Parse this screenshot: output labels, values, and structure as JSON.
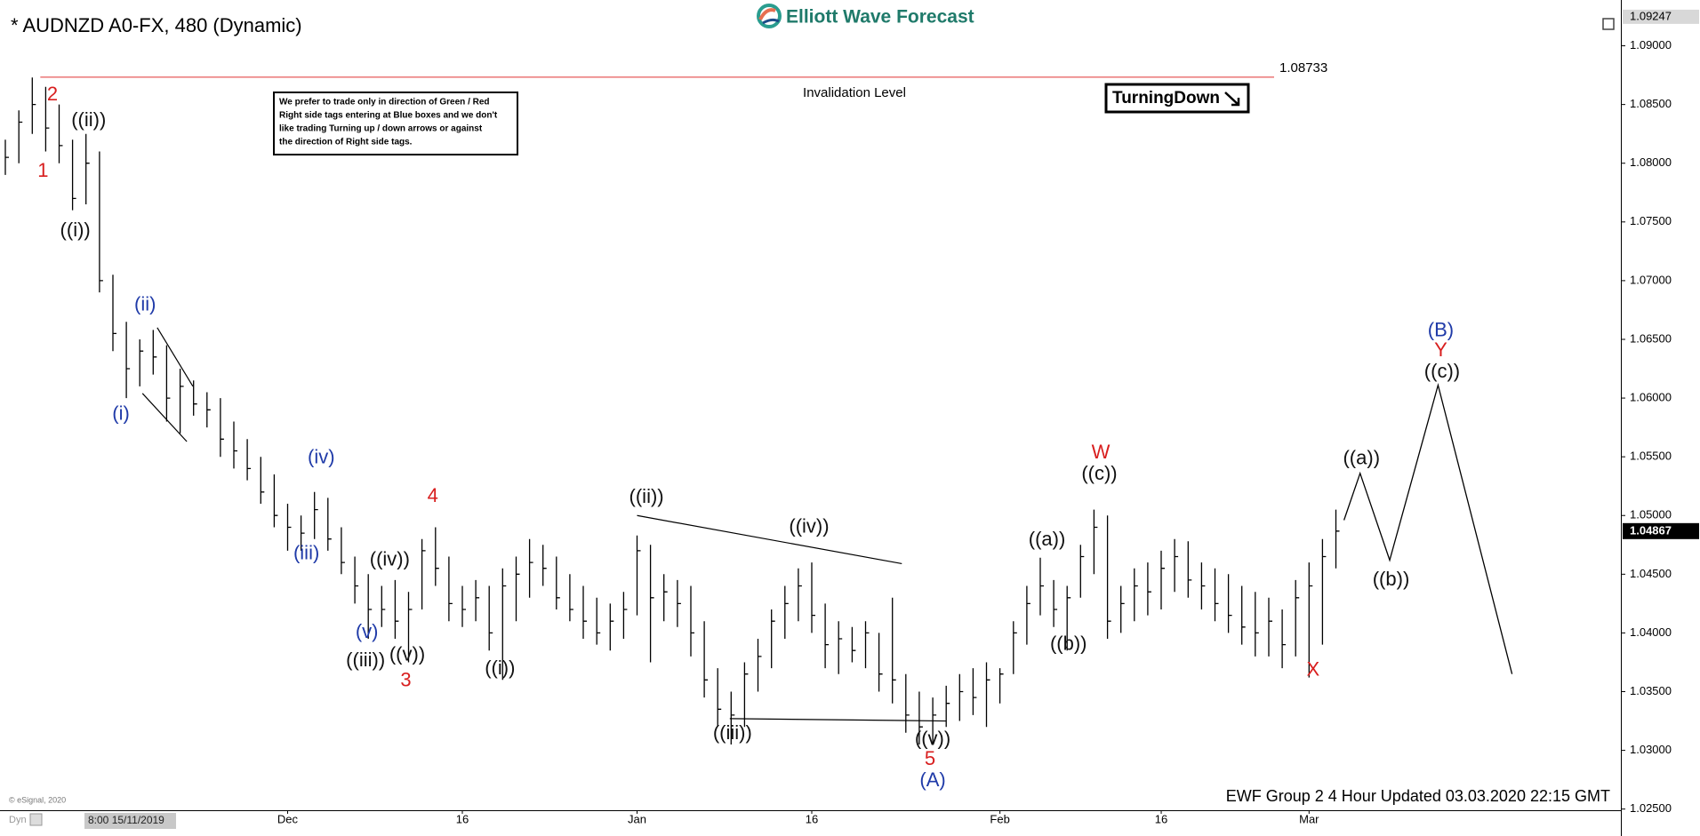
{
  "title": "* AUDNZD A0-FX, 480 (Dynamic)",
  "logo": "Elliott Wave Forecast",
  "note": [
    "We prefer to trade only in direction of Green / Red",
    "Right side tags entering at Blue boxes and we don't",
    "like trading Turning up / down arrows or against",
    "the direction of Right side tags."
  ],
  "badge": "TurningDown",
  "footer": "EWF Group 2 4 Hour Updated 03.03.2020 22:15 GMT",
  "copyright": "© eSignal, 2020",
  "dyn": "Dyn",
  "cursor_time": "8:00 15/11/2019",
  "chart_data": {
    "type": "ohlc",
    "color": "#000000",
    "categories": [
      null,
      null,
      null,
      null,
      null,
      null,
      null,
      null,
      null,
      null,
      null,
      null,
      null,
      null,
      null,
      null,
      null,
      null,
      null,
      null,
      null,
      "Dec",
      null,
      null,
      null,
      null,
      null,
      null,
      null,
      null,
      null,
      null,
      null,
      null,
      "16",
      null,
      null,
      null,
      null,
      null,
      null,
      null,
      null,
      null,
      null,
      null,
      null,
      "Jan",
      null,
      null,
      null,
      null,
      null,
      null,
      null,
      null,
      null,
      null,
      null,
      null,
      "16",
      null,
      null,
      null,
      null,
      null,
      null,
      null,
      null,
      null,
      null,
      null,
      null,
      null,
      "Feb",
      null,
      null,
      null,
      null,
      null,
      null,
      null,
      null,
      null,
      null,
      null,
      "16",
      null,
      null,
      null,
      null,
      null,
      null,
      null,
      null,
      null,
      null,
      "Mar",
      null,
      null
    ],
    "high": [
      1.082,
      1.0845,
      1.0873,
      1.0865,
      1.085,
      1.082,
      1.0825,
      1.081,
      1.0705,
      1.0665,
      1.065,
      1.0658,
      1.0645,
      1.0625,
      1.0615,
      1.0605,
      1.06,
      1.058,
      1.0565,
      1.055,
      1.0535,
      1.051,
      1.05,
      1.052,
      1.0515,
      1.049,
      1.0465,
      1.045,
      1.044,
      1.0445,
      1.0435,
      1.048,
      1.049,
      1.0465,
      1.044,
      1.0445,
      1.044,
      1.0455,
      1.0465,
      1.048,
      1.0475,
      1.0465,
      1.045,
      1.044,
      1.043,
      1.0425,
      1.0435,
      1.0483,
      1.0475,
      1.045,
      1.0445,
      1.044,
      1.041,
      1.037,
      1.035,
      1.0375,
      1.0395,
      1.042,
      1.044,
      1.0455,
      1.046,
      1.0425,
      1.041,
      1.0405,
      1.041,
      1.04,
      1.043,
      1.0365,
      1.035,
      1.0345,
      1.0355,
      1.0365,
      1.037,
      1.0375,
      1.037,
      1.041,
      1.044,
      1.0464,
      1.0445,
      1.044,
      1.0475,
      1.0505,
      1.05,
      1.044,
      1.0455,
      1.046,
      1.047,
      1.048,
      1.0478,
      1.046,
      1.0455,
      1.045,
      1.044,
      1.0435,
      1.043,
      1.042,
      1.0445,
      1.046,
      1.048,
      1.0505
    ],
    "low": [
      1.079,
      1.08,
      1.0825,
      1.081,
      1.08,
      1.076,
      1.0765,
      1.069,
      1.064,
      1.06,
      1.061,
      1.062,
      1.058,
      1.057,
      1.0585,
      1.0575,
      1.055,
      1.054,
      1.053,
      1.051,
      1.049,
      1.047,
      1.047,
      1.048,
      1.047,
      1.045,
      1.0425,
      1.0395,
      1.0405,
      1.0395,
      1.0375,
      1.042,
      1.044,
      1.041,
      1.0405,
      1.041,
      1.0385,
      1.036,
      1.041,
      1.043,
      1.044,
      1.042,
      1.041,
      1.0395,
      1.039,
      1.0385,
      1.0395,
      1.0415,
      1.0375,
      1.041,
      1.0405,
      1.038,
      1.0345,
      1.032,
      1.0305,
      1.032,
      1.035,
      1.037,
      1.0395,
      1.041,
      1.04,
      1.037,
      1.0365,
      1.0375,
      1.037,
      1.035,
      1.034,
      1.0315,
      1.0305,
      1.0305,
      1.032,
      1.0325,
      1.033,
      1.032,
      1.034,
      1.0365,
      1.039,
      1.0415,
      1.0405,
      1.0385,
      1.043,
      1.045,
      1.0395,
      1.04,
      1.041,
      1.0415,
      1.042,
      1.0435,
      1.043,
      1.042,
      1.041,
      1.04,
      1.039,
      1.038,
      1.038,
      1.037,
      1.038,
      1.0362,
      1.039,
      1.0455
    ],
    "close": [
      1.0805,
      1.0835,
      1.085,
      1.083,
      1.0815,
      1.077,
      1.08,
      1.07,
      1.0655,
      1.0625,
      1.064,
      1.0635,
      1.06,
      1.061,
      1.0595,
      1.059,
      1.0565,
      1.0555,
      1.054,
      1.052,
      1.05,
      1.049,
      1.0485,
      1.0505,
      1.048,
      1.046,
      1.044,
      1.042,
      1.042,
      1.041,
      1.042,
      1.047,
      1.0455,
      1.0425,
      1.042,
      1.043,
      1.04,
      1.044,
      1.045,
      1.046,
      1.0455,
      1.043,
      1.042,
      1.041,
      1.04,
      1.041,
      1.042,
      1.047,
      1.043,
      1.0435,
      1.0425,
      1.04,
      1.036,
      1.0335,
      1.033,
      1.0365,
      1.038,
      1.041,
      1.0425,
      1.044,
      1.0415,
      1.039,
      1.0395,
      1.0385,
      1.04,
      1.0365,
      1.036,
      1.033,
      1.032,
      1.033,
      1.034,
      1.035,
      1.0345,
      1.036,
      1.0365,
      1.04,
      1.0425,
      1.044,
      1.042,
      1.043,
      1.0465,
      1.049,
      1.041,
      1.0425,
      1.044,
      1.0435,
      1.0455,
      1.0465,
      1.0445,
      1.044,
      1.0425,
      1.0415,
      1.0405,
      1.04,
      1.041,
      1.039,
      1.043,
      1.044,
      1.0465,
      1.04867
    ],
    "xlim": [
      -0.4,
      120.2
    ],
    "ylim": [
      1.0249,
      1.0939
    ],
    "yticks": [
      {
        "value": 1.025,
        "label": "1.02500"
      },
      {
        "value": 1.03,
        "label": "1.03000"
      },
      {
        "value": 1.035,
        "label": "1.03500"
      },
      {
        "value": 1.04,
        "label": "1.04000"
      },
      {
        "value": 1.045,
        "label": "1.04500"
      },
      {
        "value": 1.05,
        "label": "1.05000"
      },
      {
        "value": 1.055,
        "label": "1.05500"
      },
      {
        "value": 1.06,
        "label": "1.06000"
      },
      {
        "value": 1.065,
        "label": "1.06500"
      },
      {
        "value": 1.07,
        "label": "1.07000"
      },
      {
        "value": 1.075,
        "label": "1.07500"
      },
      {
        "value": 1.08,
        "label": "1.08000"
      },
      {
        "value": 1.085,
        "label": "1.08500"
      },
      {
        "value": 1.09,
        "label": "1.09000"
      }
    ],
    "top_tag": 1.09247,
    "last_price": 1.04867,
    "invalidation": {
      "value": 1.08733,
      "label": "Invalidation Level",
      "x": [
        2.6,
        94.4
      ],
      "color": "#e03030"
    },
    "annotations": [
      {
        "text": "2",
        "color": "#d81e1e",
        "x": 3.5,
        "y": 1.0858
      },
      {
        "text": "1",
        "color": "#d81e1e",
        "x": 2.8,
        "y": 1.0793
      },
      {
        "text": "((ii))",
        "color": "#111111",
        "x": 6.2,
        "y": 1.0836
      },
      {
        "text": "((i))",
        "color": "#111111",
        "x": 5.2,
        "y": 1.0742
      },
      {
        "text": "(ii)",
        "color": "#1f3aa8",
        "x": 10.4,
        "y": 1.0679
      },
      {
        "text": "(i)",
        "color": "#1f3aa8",
        "x": 8.6,
        "y": 1.0586
      },
      {
        "text": "(iv)",
        "color": "#1f3aa8",
        "x": 23.5,
        "y": 1.0549
      },
      {
        "text": "(iii)",
        "color": "#1f3aa8",
        "x": 22.4,
        "y": 1.0467
      },
      {
        "text": "4",
        "color": "#d81e1e",
        "x": 31.8,
        "y": 1.0516
      },
      {
        "text": "((iv))",
        "color": "#111111",
        "x": 28.6,
        "y": 1.0462
      },
      {
        "text": "(v)",
        "color": "#1f3aa8",
        "x": 26.9,
        "y": 1.04
      },
      {
        "text": "((iii))",
        "color": "#111111",
        "x": 26.8,
        "y": 1.0376
      },
      {
        "text": "((v))",
        "color": "#111111",
        "x": 29.9,
        "y": 1.0381
      },
      {
        "text": "3",
        "color": "#d81e1e",
        "x": 29.8,
        "y": 1.0359
      },
      {
        "text": "((i))",
        "color": "#111111",
        "x": 36.8,
        "y": 1.0369
      },
      {
        "text": "((ii))",
        "color": "#111111",
        "x": 47.7,
        "y": 1.0515
      },
      {
        "text": "((iv))",
        "color": "#111111",
        "x": 59.8,
        "y": 1.049
      },
      {
        "text": "((iii))",
        "color": "#111111",
        "x": 54.1,
        "y": 1.0314
      },
      {
        "text": "((v))",
        "color": "#111111",
        "x": 69,
        "y": 1.0309
      },
      {
        "text": "5",
        "color": "#d81e1e",
        "x": 68.8,
        "y": 1.0292
      },
      {
        "text": "(A)",
        "color": "#1f3aa8",
        "x": 69,
        "y": 1.0274
      },
      {
        "text": "((a))",
        "color": "#111111",
        "x": 77.5,
        "y": 1.0479
      },
      {
        "text": "((b))",
        "color": "#111111",
        "x": 79.1,
        "y": 1.039
      },
      {
        "text": "W",
        "color": "#d81e1e",
        "x": 81.5,
        "y": 1.0553
      },
      {
        "text": "((c))",
        "color": "#111111",
        "x": 81.4,
        "y": 1.0535
      },
      {
        "text": "X",
        "color": "#d81e1e",
        "x": 97.3,
        "y": 1.0368
      },
      {
        "text": "((a))",
        "color": "#111111",
        "x": 100.9,
        "y": 1.0548
      },
      {
        "text": "((b))",
        "color": "#111111",
        "x": 103.1,
        "y": 1.0445
      },
      {
        "text": "(B)",
        "color": "#1f3aa8",
        "x": 106.8,
        "y": 1.0657
      },
      {
        "text": "Y",
        "color": "#d81e1e",
        "x": 106.8,
        "y": 1.064
      },
      {
        "text": "((c))",
        "color": "#111111",
        "x": 106.9,
        "y": 1.0622
      }
    ],
    "trendlines": [
      {
        "x": [
          11.3,
          13.95
        ],
        "y": [
          1.066,
          1.061
        ]
      },
      {
        "x": [
          10.2,
          13.5
        ],
        "y": [
          1.0604,
          1.0563
        ]
      },
      {
        "x": [
          47,
          66.7
        ],
        "y": [
          1.05,
          1.0459
        ]
      },
      {
        "x": [
          53.9,
          70
        ],
        "y": [
          1.0327,
          1.0325
        ]
      }
    ],
    "projection": {
      "x": [
        99.6,
        100.8,
        103,
        106.6,
        112.1
      ],
      "values": [
        1.0496,
        1.0536,
        1.0462,
        1.0611,
        1.0365
      ]
    }
  }
}
